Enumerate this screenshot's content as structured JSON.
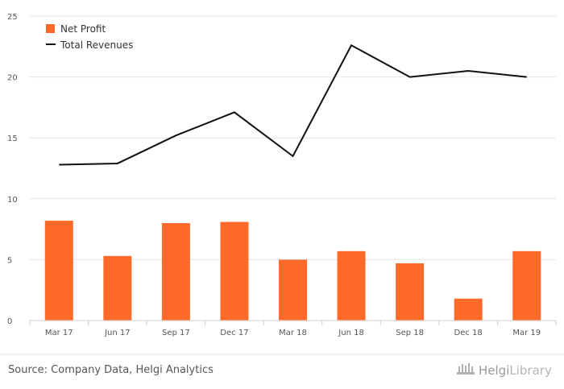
{
  "chart_data": {
    "type": "bar",
    "categories": [
      "Mar 17",
      "Jun 17",
      "Sep 17",
      "Dec 17",
      "Mar 18",
      "Jun 18",
      "Sep 18",
      "Dec 18",
      "Mar 19"
    ],
    "series": [
      {
        "name": "Net Profit",
        "type": "bar",
        "color": "#ff6a2b",
        "values": [
          8.2,
          5.3,
          8.0,
          8.1,
          5.0,
          5.7,
          4.7,
          1.8,
          5.7
        ]
      },
      {
        "name": "Total Revenues",
        "type": "line",
        "color": "#111111",
        "values": [
          12.8,
          12.9,
          15.2,
          17.1,
          13.5,
          22.6,
          20.0,
          20.5,
          20.0
        ]
      }
    ],
    "ylim": [
      0,
      25
    ],
    "yticks": [
      0,
      5,
      10,
      15,
      20,
      25
    ],
    "grid": true,
    "legend_position": "top-left",
    "title": "",
    "xlabel": "",
    "ylabel": ""
  },
  "footer": {
    "source": "Source: Company Data, Helgi Analytics",
    "brand_part1": "Helgi",
    "brand_part2": "Library",
    "brand_icon": "library-building-icon"
  }
}
